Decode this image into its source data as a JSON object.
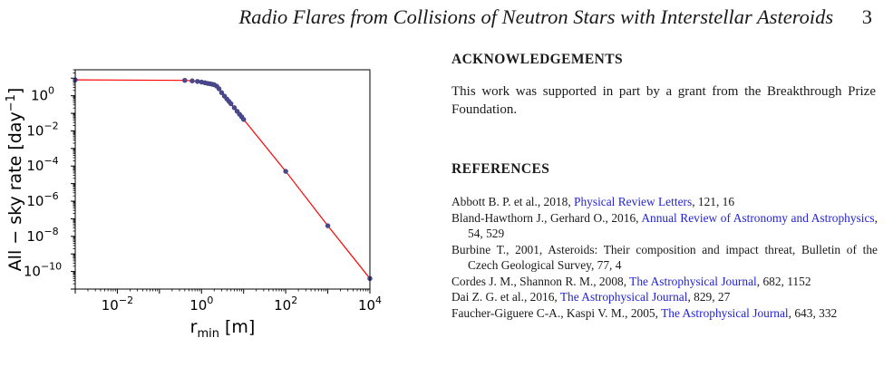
{
  "running_head": {
    "title": "Radio Flares from Collisions of Neutron Stars with Interstellar Asteroids",
    "page_number": "3"
  },
  "chart_data": {
    "type": "line",
    "xlabel": "r_min [m]",
    "ylabel": "All − sky rate [day^-1]",
    "xscale": "log",
    "yscale": "log",
    "xlim": [
      0.001,
      10000
    ],
    "ylim": [
      1e-11,
      30
    ],
    "grid": false,
    "x_tick_labels": [
      "10^-2",
      "10^0",
      "10^2",
      "10^4"
    ],
    "y_tick_labels": [
      "10^0",
      "10^-2",
      "10^-4",
      "10^-6",
      "10^-8",
      "10^-10"
    ],
    "line_color": "#ff0000",
    "marker_color": "#4b4a8f",
    "series": [
      {
        "x": [
          0.001,
          0.4,
          0.6,
          0.8,
          1.0,
          1.2,
          1.4,
          1.6,
          1.8,
          2.0,
          2.3,
          2.6,
          3.0,
          3.5,
          4.0,
          4.5,
          5.0,
          6.0,
          7.0,
          8.0,
          9.0,
          10.0,
          100,
          1000,
          10000
        ],
        "y": [
          8.0,
          7.5,
          7.0,
          6.5,
          6.0,
          5.5,
          5.0,
          4.8,
          4.5,
          4.2,
          3.5,
          2.5,
          1.5,
          0.95,
          0.65,
          0.47,
          0.35,
          0.21,
          0.13,
          0.088,
          0.063,
          0.045,
          5e-05,
          4e-08,
          4e-11
        ]
      }
    ]
  },
  "acknowledgements": {
    "heading": "ACKNOWLEDGEMENTS",
    "text": "This work was supported in part by a grant from the Breakthrough Prize Foundation."
  },
  "references": {
    "heading": "REFERENCES",
    "items": [
      {
        "pre": "Abbott B. P. et al., 2018, ",
        "link": "Physical Review Letters",
        "post": ", 121, 16"
      },
      {
        "pre": "Bland-Hawthorn J., Gerhard O., 2016, ",
        "link": "Annual Review of Astronomy and Astrophysics",
        "post": ", 54, 529"
      },
      {
        "pre": "Burbine T., 2001, Asteroids: Their composition and impact threat, Bulletin of the Czech Geological Survey, 77, 4",
        "link": "",
        "post": ""
      },
      {
        "pre": "Cordes J. M., Shannon R. M., 2008, ",
        "link": "The Astrophysical Journal",
        "post": ", 682, 1152"
      },
      {
        "pre": "Dai Z. G. et al., 2016, ",
        "link": "The Astrophysical Journal",
        "post": ", 829, 27"
      },
      {
        "pre": "Faucher-Giguere C-A., Kaspi V. M., 2005, ",
        "link": "The Astrophysical Journal",
        "post": ", 643, 332"
      }
    ]
  }
}
